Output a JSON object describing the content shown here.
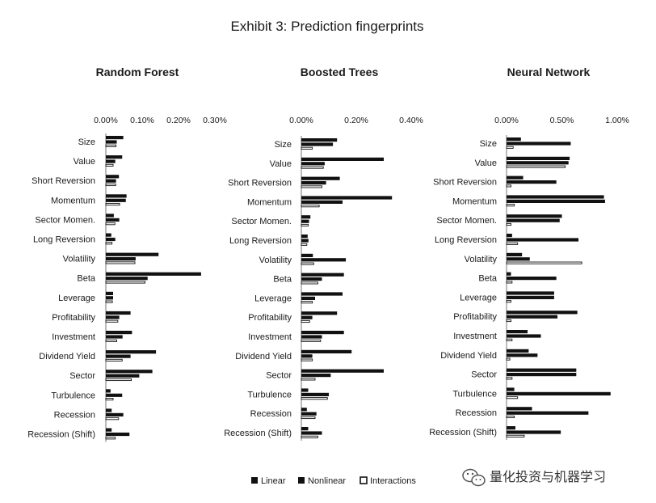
{
  "title": "Exhibit 3: Prediction fingerprints",
  "legend": {
    "linear": "Linear",
    "nonlinear": "Nonlinear",
    "interactions": "Interactions"
  },
  "watermark": {
    "text": "量化投资与机器学习",
    "icon": "wechat-logo-icon"
  },
  "colors": {
    "bar_fill": "#111111",
    "background": "#ffffff",
    "text": "#1a1a1a"
  },
  "chart_data": [
    {
      "type": "bar",
      "orientation": "horizontal",
      "title": "Random Forest",
      "tick_values": [
        0,
        0.1,
        0.2,
        0.3
      ],
      "tick_labels": [
        "0.00%",
        "0.10%",
        "0.20%",
        "0.30%"
      ],
      "xlim": [
        0,
        0.3
      ],
      "categories": [
        "Size",
        "Value",
        "Short Reversion",
        "Momentum",
        "Sector Momen.",
        "Long Reversion",
        "Volatility",
        "Beta",
        "Leverage",
        "Profitability",
        "Investment",
        "Dividend Yield",
        "Sector",
        "Turbulence",
        "Recession",
        "Recession (Shift)"
      ],
      "series": [
        {
          "name": "Linear",
          "values": [
            0.048,
            0.045,
            0.036,
            0.057,
            0.022,
            0.015,
            0.145,
            0.262,
            0.02,
            0.068,
            0.072,
            0.138,
            0.128,
            0.013,
            0.016,
            0.016
          ]
        },
        {
          "name": "Nonlinear",
          "values": [
            0.03,
            0.026,
            0.028,
            0.055,
            0.037,
            0.026,
            0.082,
            0.115,
            0.02,
            0.037,
            0.046,
            0.068,
            0.092,
            0.045,
            0.048,
            0.065
          ]
        },
        {
          "name": "Interactions",
          "values": [
            0.028,
            0.02,
            0.027,
            0.038,
            0.025,
            0.017,
            0.08,
            0.108,
            0.018,
            0.033,
            0.03,
            0.045,
            0.07,
            0.02,
            0.035,
            0.026
          ]
        }
      ]
    },
    {
      "type": "bar",
      "orientation": "horizontal",
      "title": "Boosted Trees",
      "tick_values": [
        0,
        0.2,
        0.4
      ],
      "tick_labels": [
        "0.00%",
        "0.20%",
        "0.40%"
      ],
      "xlim": [
        0,
        0.4
      ],
      "categories": [
        "Size",
        "Value",
        "Short Reversion",
        "Momentum",
        "Sector Momen.",
        "Long Reversion",
        "Volatility",
        "Beta",
        "Leverage",
        "Profitability",
        "Investment",
        "Dividend Yield",
        "Sector",
        "Turbulence",
        "Recession",
        "Recession (Shift)"
      ],
      "series": [
        {
          "name": "Linear",
          "values": [
            0.13,
            0.3,
            0.14,
            0.33,
            0.033,
            0.023,
            0.042,
            0.155,
            0.15,
            0.13,
            0.155,
            0.183,
            0.3,
            0.025,
            0.02,
            0.025
          ]
        },
        {
          "name": "Nonlinear",
          "values": [
            0.115,
            0.085,
            0.09,
            0.15,
            0.028,
            0.026,
            0.162,
            0.075,
            0.05,
            0.04,
            0.075,
            0.04,
            0.107,
            0.1,
            0.055,
            0.075
          ]
        },
        {
          "name": "Interactions",
          "values": [
            0.04,
            0.08,
            0.075,
            0.065,
            0.025,
            0.02,
            0.045,
            0.06,
            0.04,
            0.03,
            0.07,
            0.04,
            0.05,
            0.095,
            0.05,
            0.06
          ]
        }
      ]
    },
    {
      "type": "bar",
      "orientation": "horizontal",
      "title": "Neural Network",
      "tick_values": [
        0,
        0.5,
        1.0
      ],
      "tick_labels": [
        "0.00%",
        "0.50%",
        "1.00%"
      ],
      "xlim": [
        0,
        1.0
      ],
      "categories": [
        "Size",
        "Value",
        "Short Reversion",
        "Momentum",
        "Sector Momen.",
        "Long Reversion",
        "Volatility",
        "Beta",
        "Leverage",
        "Profitability",
        "Investment",
        "Dividend Yield",
        "Sector",
        "Turbulence",
        "Recession",
        "Recession (Shift)"
      ],
      "series": [
        {
          "name": "Linear",
          "values": [
            0.13,
            0.57,
            0.15,
            0.88,
            0.5,
            0.05,
            0.14,
            0.04,
            0.43,
            0.64,
            0.19,
            0.2,
            0.63,
            0.07,
            0.23,
            0.08
          ]
        },
        {
          "name": "Nonlinear",
          "values": [
            0.58,
            0.56,
            0.45,
            0.89,
            0.48,
            0.65,
            0.21,
            0.45,
            0.43,
            0.46,
            0.31,
            0.28,
            0.63,
            0.94,
            0.74,
            0.49
          ]
        },
        {
          "name": "Interactions",
          "values": [
            0.06,
            0.53,
            0.04,
            0.07,
            0.04,
            0.1,
            0.68,
            0.05,
            0.04,
            0.04,
            0.05,
            0.03,
            0.05,
            0.1,
            0.07,
            0.16
          ]
        }
      ]
    }
  ]
}
